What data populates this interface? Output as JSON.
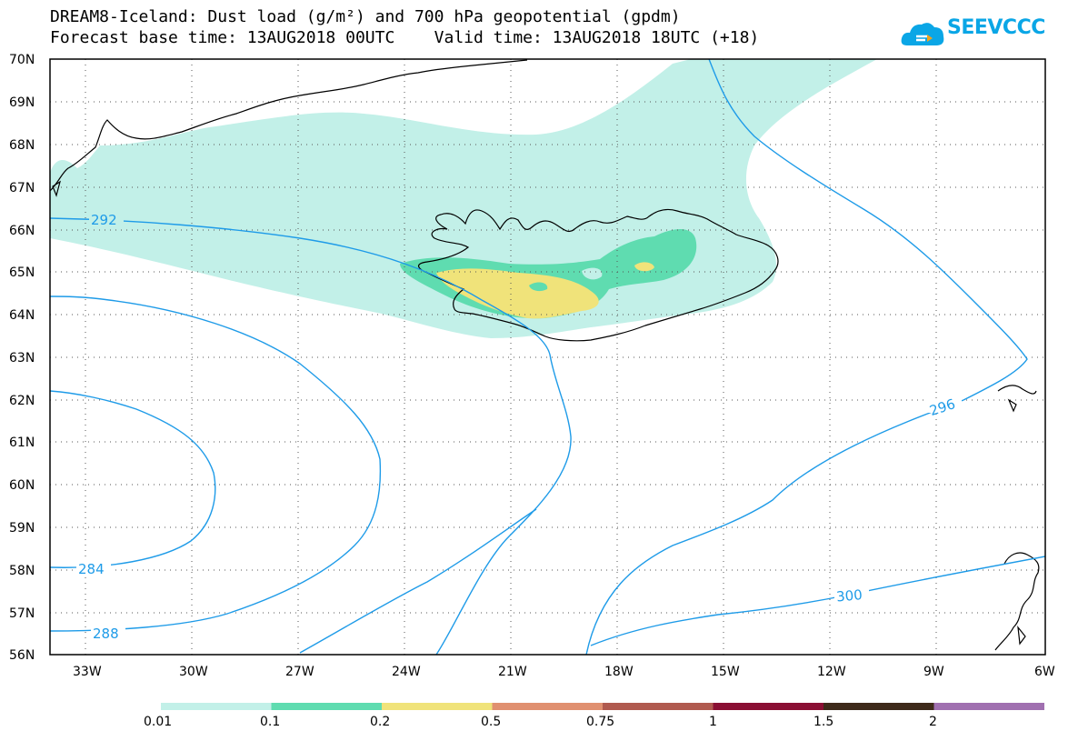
{
  "title_line1": "DREAM8-Iceland: Dust load (g/m²) and 700 hPa geopotential (gpdm)",
  "title_line2": "Forecast base time: 13AUG2018 00UTC    Valid time: 13AUG2018 18UTC (+18)",
  "logo_text": "SEEVCCC",
  "lat_labels": [
    "70N",
    "69N",
    "68N",
    "67N",
    "66N",
    "65N",
    "64N",
    "63N",
    "62N",
    "61N",
    "60N",
    "59N",
    "58N",
    "57N",
    "56N"
  ],
  "lon_labels": [
    "33W",
    "30W",
    "27W",
    "24W",
    "21W",
    "18W",
    "15W",
    "12W",
    "9W",
    "6W"
  ],
  "contour_labels": [
    "292",
    "296",
    "300",
    "284",
    "288"
  ],
  "colorbar": {
    "labels": [
      "0.01",
      "0.1",
      "0.2",
      "0.5",
      "0.75",
      "1",
      "1.5",
      "2"
    ],
    "colors": [
      "#c2f0e8",
      "#5fdcb0",
      "#f0e37a",
      "#e09070",
      "#b05a4f",
      "#8a0f33",
      "#3e2a1a",
      "#a070b0"
    ]
  },
  "colors": {
    "contour": "#1e9be8",
    "dust_low": "#c2f0e8",
    "dust_mid": "#5fdcb0",
    "dust_high": "#f0e37a"
  }
}
